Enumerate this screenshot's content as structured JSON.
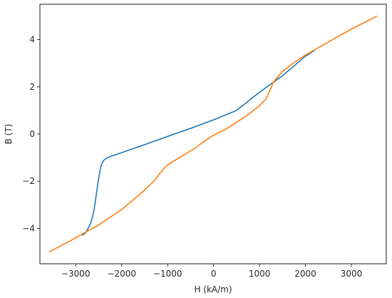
{
  "chart_data": {
    "type": "line",
    "title": "",
    "xlabel": "H (kA/m)",
    "ylabel": "B (T)",
    "xlim": [
      -3780,
      3760
    ],
    "ylim": [
      -5.5,
      5.5
    ],
    "xticks": [
      -3000,
      -2000,
      -1000,
      0,
      1000,
      2000,
      3000
    ],
    "xtick_labels": [
      "−3000",
      "−2000",
      "−1000",
      "0",
      "1000",
      "2000",
      "3000"
    ],
    "yticks": [
      -4,
      -2,
      0,
      2,
      4
    ],
    "ytick_labels": [
      "−4",
      "−2",
      "0",
      "2",
      "4"
    ],
    "grid": false,
    "legend": "none",
    "series": [
      {
        "color": "#1f77b4",
        "x": [
          -2860,
          -2790,
          -2730,
          -2680,
          -2640,
          -2600,
          -2570,
          -2540,
          -2510,
          -2480,
          -2450,
          -2420,
          -2395,
          -2370,
          -2310,
          -2200,
          -2000,
          -1500,
          -1000,
          -500,
          0,
          500,
          1000,
          1500,
          2000,
          2200
        ],
        "y": [
          -4.3,
          -4.2,
          -4.0,
          -3.8,
          -3.55,
          -3.2,
          -2.8,
          -2.4,
          -2.0,
          -1.65,
          -1.35,
          -1.2,
          -1.13,
          -1.08,
          -1.0,
          -0.92,
          -0.79,
          -0.45,
          -0.1,
          0.24,
          0.6,
          1.0,
          1.77,
          2.47,
          3.3,
          3.55
        ]
      },
      {
        "color": "#ff7f0e",
        "x": [
          -3580,
          -3000,
          -2500,
          -2000,
          -1600,
          -1300,
          -1200,
          -1100,
          -1000,
          -700,
          -400,
          -200,
          0,
          300,
          700,
          1000,
          1150,
          1200,
          1250,
          1300,
          1500,
          1800,
          2000,
          2500,
          3000,
          3560
        ],
        "y": [
          -5.0,
          -4.4,
          -3.85,
          -3.2,
          -2.55,
          -2.0,
          -1.75,
          -1.5,
          -1.3,
          -0.95,
          -0.6,
          -0.3,
          -0.05,
          0.25,
          0.75,
          1.2,
          1.5,
          1.75,
          1.95,
          2.2,
          2.65,
          3.1,
          3.35,
          3.9,
          4.45,
          5.0
        ]
      }
    ]
  }
}
